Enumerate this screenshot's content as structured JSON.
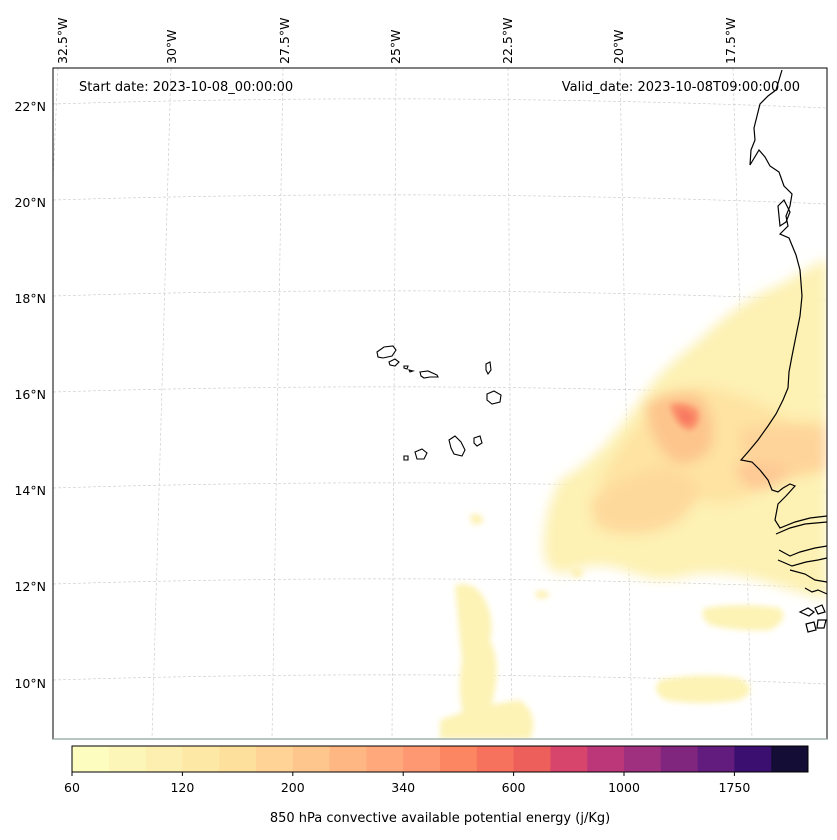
{
  "map": {
    "start_date": "Start date: 2023-10-08_00:00:00",
    "valid_date": "Valid_date: 2023-10-08T09:00:00.00",
    "lon_labels": [
      "32.5°W",
      "30°W",
      "27.5°W",
      "25°W",
      "22.5°W",
      "20°W",
      "17.5°W"
    ],
    "lat_labels": [
      "22°N",
      "20°N",
      "18°N",
      "16°N",
      "14°N",
      "12°N",
      "10°N"
    ]
  },
  "colorbar": {
    "label": "850 hPa convective available potential energy (j/Kg)",
    "tick_labels": [
      "60",
      "120",
      "200",
      "340",
      "600",
      "1000",
      "1750"
    ],
    "colors": [
      "#fcfdbf",
      "#fcf6b8",
      "#fdefaf",
      "#fee8a6",
      "#fee09d",
      "#fed395",
      "#fec68c",
      "#feb683",
      "#fea87c",
      "#fd9872",
      "#fb8661",
      "#f7725c",
      "#ec5f5b",
      "#d8456c",
      "#bc3779",
      "#9f2f7f",
      "#81267f",
      "#621c7d",
      "#3b0f6f",
      "#140e36"
    ]
  },
  "chart_data": {
    "type": "heatmap",
    "variable": "850 hPa convective available potential energy (j/Kg)",
    "levels": [
      60,
      120,
      200,
      340,
      600,
      1000,
      1750
    ],
    "lon_range": [
      "32.5°W",
      "15.5°W"
    ],
    "lat_range": [
      "9°N",
      "22.5°N"
    ],
    "max_region": {
      "lon": "18.5°W",
      "lat": "15.5°N",
      "approx_value": 600
    }
  }
}
